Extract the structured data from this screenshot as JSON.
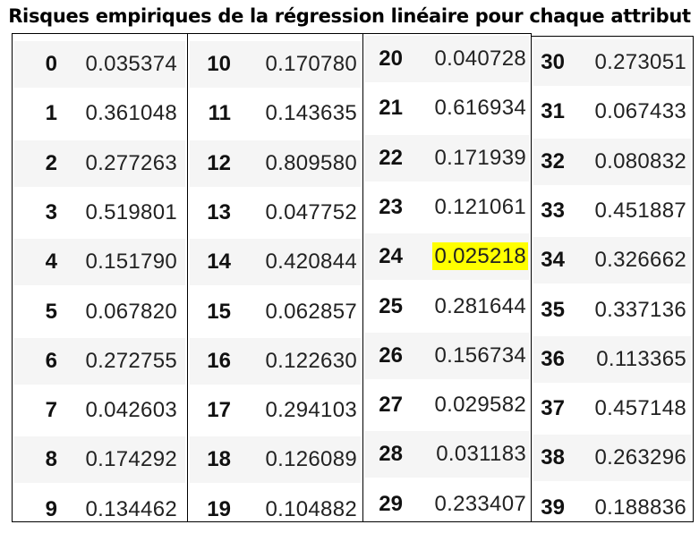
{
  "title": "Risques empiriques de la régression linéaire pour chaque attribut",
  "columns": [
    {
      "rows": [
        {
          "index": "0",
          "value": "0.035374"
        },
        {
          "index": "1",
          "value": "0.361048"
        },
        {
          "index": "2",
          "value": "0.277263"
        },
        {
          "index": "3",
          "value": "0.519801"
        },
        {
          "index": "4",
          "value": "0.151790"
        },
        {
          "index": "5",
          "value": "0.067820"
        },
        {
          "index": "6",
          "value": "0.272755"
        },
        {
          "index": "7",
          "value": "0.042603"
        },
        {
          "index": "8",
          "value": "0.174292"
        },
        {
          "index": "9",
          "value": "0.134462"
        }
      ]
    },
    {
      "rows": [
        {
          "index": "10",
          "value": "0.170780"
        },
        {
          "index": "11",
          "value": "0.143635"
        },
        {
          "index": "12",
          "value": "0.809580"
        },
        {
          "index": "13",
          "value": "0.047752"
        },
        {
          "index": "14",
          "value": "0.420844"
        },
        {
          "index": "15",
          "value": "0.062857"
        },
        {
          "index": "16",
          "value": "0.122630"
        },
        {
          "index": "17",
          "value": "0.294103"
        },
        {
          "index": "18",
          "value": "0.126089"
        },
        {
          "index": "19",
          "value": "0.104882"
        }
      ]
    },
    {
      "rows": [
        {
          "index": "20",
          "value": "0.040728"
        },
        {
          "index": "21",
          "value": "0.616934"
        },
        {
          "index": "22",
          "value": "0.171939"
        },
        {
          "index": "23",
          "value": "0.121061"
        },
        {
          "index": "24",
          "value": "0.025218",
          "highlighted": true
        },
        {
          "index": "25",
          "value": "0.281644"
        },
        {
          "index": "26",
          "value": "0.156734"
        },
        {
          "index": "27",
          "value": "0.029582"
        },
        {
          "index": "28",
          "value": "0.031183"
        },
        {
          "index": "29",
          "value": "0.233407"
        }
      ]
    },
    {
      "rows": [
        {
          "index": "30",
          "value": "0.273051"
        },
        {
          "index": "31",
          "value": "0.067433"
        },
        {
          "index": "32",
          "value": "0.080832"
        },
        {
          "index": "33",
          "value": "0.451887"
        },
        {
          "index": "34",
          "value": "0.326662"
        },
        {
          "index": "35",
          "value": "0.337136"
        },
        {
          "index": "36",
          "value": "0.113365"
        },
        {
          "index": "37",
          "value": "0.457148"
        },
        {
          "index": "38",
          "value": "0.263296"
        },
        {
          "index": "39",
          "value": "0.188836"
        }
      ]
    }
  ],
  "colors": {
    "highlight": "#ffff00",
    "shaded_row": "#f5f5f5",
    "border": "#000000"
  }
}
